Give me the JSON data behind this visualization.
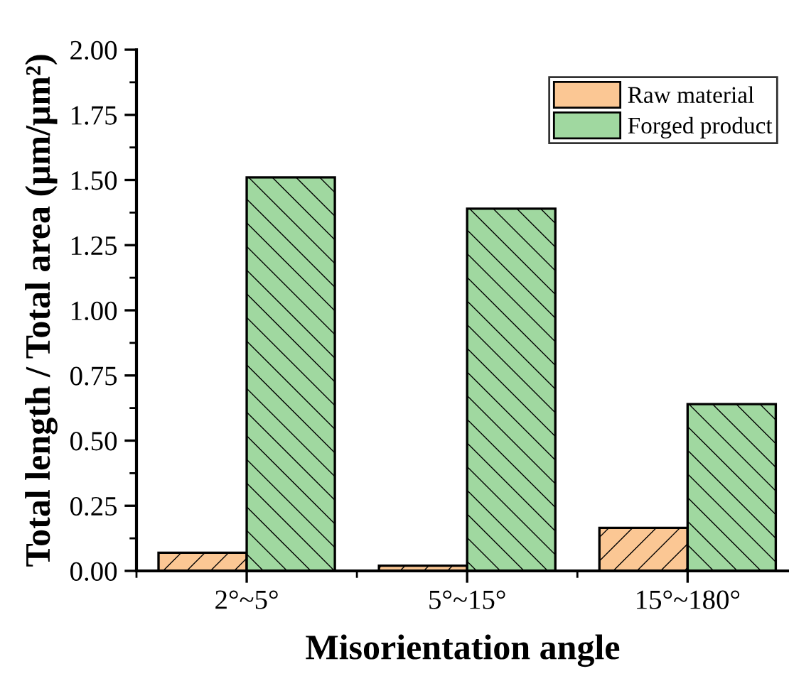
{
  "chart_data": {
    "type": "bar",
    "xlabel": "Misorientation angle",
    "ylabel": "Total length / Total area (μm/μm²)",
    "categories": [
      "2°~5°",
      "5°~15°",
      "15°~180°"
    ],
    "series": [
      {
        "name": "Raw material",
        "color": "#fbc794",
        "values": [
          0.07,
          0.02,
          0.165
        ]
      },
      {
        "name": "Forged product",
        "color": "#a0d8a0",
        "values": [
          1.51,
          1.39,
          0.64
        ]
      }
    ],
    "ylim": [
      0,
      2.0
    ],
    "yticks": [
      {
        "value": 0,
        "label": "0.00"
      },
      {
        "value": 0.25,
        "label": "0.25"
      },
      {
        "value": 0.5,
        "label": "0.50"
      },
      {
        "value": 0.75,
        "label": "0.75"
      },
      {
        "value": 1.0,
        "label": "1.00"
      },
      {
        "value": 1.25,
        "label": "1.25"
      },
      {
        "value": 1.5,
        "label": "1.50"
      },
      {
        "value": 1.75,
        "label": "1.75"
      },
      {
        "value": 2.0,
        "label": "2.00"
      }
    ],
    "grid": false,
    "legend": "top right"
  }
}
